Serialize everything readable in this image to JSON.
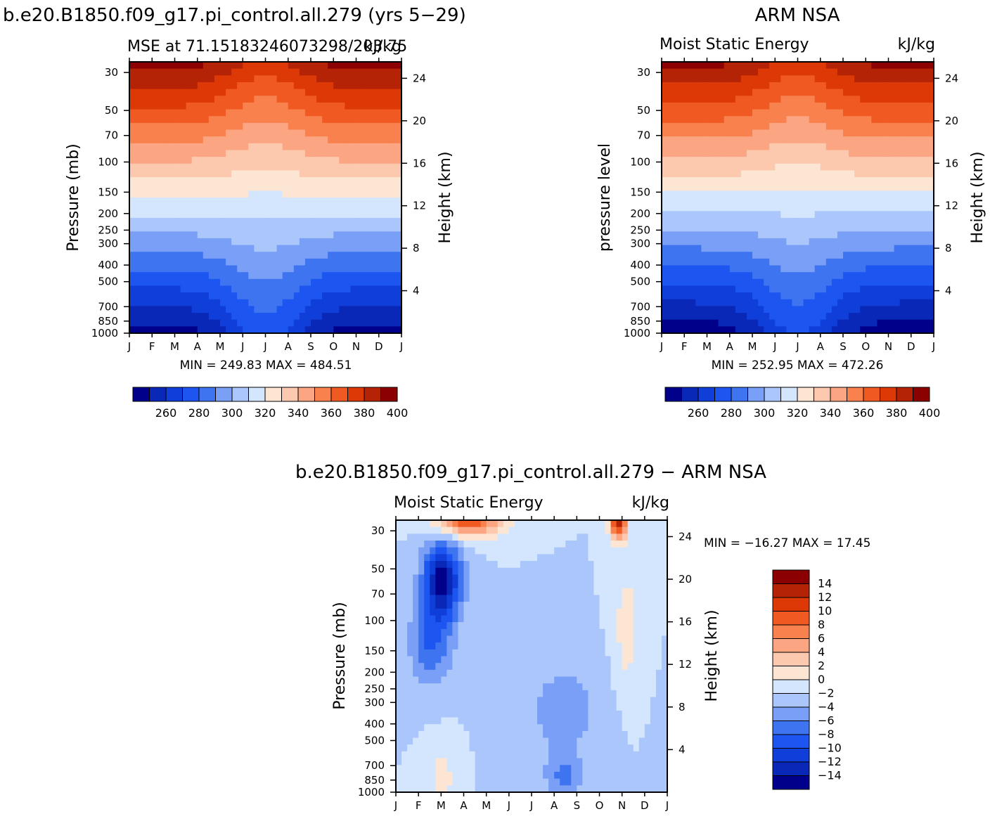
{
  "months": [
    "J",
    "F",
    "M",
    "A",
    "M",
    "J",
    "J",
    "A",
    "S",
    "O",
    "N",
    "D",
    "J"
  ],
  "pressure_ticks": [
    "30",
    "50",
    "70",
    "100",
    "150",
    "200",
    "250",
    "300",
    "400",
    "500",
    "700",
    "850",
    "1000"
  ],
  "pressure_values": [
    30,
    50,
    70,
    100,
    150,
    200,
    250,
    300,
    400,
    500,
    700,
    850,
    1000
  ],
  "height_ticks": [
    "24",
    "20",
    "16",
    "12",
    "8",
    "4"
  ],
  "height_values": [
    24,
    20,
    16,
    12,
    8,
    4
  ],
  "colors": {
    "mse_scale": [
      "#00008b",
      "#0a28b8",
      "#0f3ed8",
      "#1d55f0",
      "#3f74f0",
      "#7a9ff6",
      "#aac6fb",
      "#d4e6fd",
      "#fde5d4",
      "#fcc8ae",
      "#fba582",
      "#f8814e",
      "#f05a22",
      "#dd3906",
      "#b52306",
      "#8b0000"
    ],
    "diff_scale": [
      "#00008b",
      "#0a28b8",
      "#0f3ed8",
      "#1d55f0",
      "#3f74f0",
      "#7a9ff6",
      "#aac6fb",
      "#d4e6fd",
      "#fde5d4",
      "#fcc8ae",
      "#fba582",
      "#f8814e",
      "#f05a22",
      "#dd3906",
      "#b52306",
      "#8b0000"
    ]
  },
  "chart_data": [
    {
      "type": "heatmap",
      "id": "model",
      "main_title": "b.e20.B1850.f09_g17.pi_control.all.279 (yrs 5−29)",
      "subtitle_left": "MSE at 71.15183246073298/203.75",
      "subtitle_right": "kJ/kg",
      "ylabel": "Pressure (mb)",
      "y2label": "Height (km)",
      "stats": "MIN =  249.83 MAX =  484.51",
      "min": 249.83,
      "max": 484.51,
      "colorbar_labels": [
        "260",
        "280",
        "300",
        "320",
        "340",
        "360",
        "380",
        "400"
      ],
      "levels": [
        260,
        270,
        280,
        290,
        300,
        310,
        320,
        330,
        340,
        350,
        360,
        370,
        380,
        390,
        400
      ],
      "seasonal_amplitude": 1.0
    },
    {
      "type": "heatmap",
      "id": "obs",
      "main_title": "ARM NSA",
      "subtitle_left": "Moist Static Energy",
      "subtitle_right": "kJ/kg",
      "ylabel": "pressure level",
      "y2label": "Height (km)",
      "stats": "MIN =  252.95 MAX =  472.26",
      "min": 252.95,
      "max": 472.26,
      "colorbar_labels": [
        "260",
        "280",
        "300",
        "320",
        "340",
        "360",
        "380",
        "400"
      ],
      "levels": [
        260,
        270,
        280,
        290,
        300,
        310,
        320,
        330,
        340,
        350,
        360,
        370,
        380,
        390,
        400
      ],
      "seasonal_amplitude": 1.0
    },
    {
      "type": "heatmap",
      "id": "diff",
      "main_title": "b.e20.B1850.f09_g17.pi_control.all.279 − ARM NSA",
      "subtitle_left": "Moist Static Energy",
      "subtitle_right": "kJ/kg",
      "ylabel": "Pressure (mb)",
      "y2label": "Height (km)",
      "stats": "MIN = −16.27 MAX =   17.45",
      "min": -16.27,
      "max": 17.45,
      "colorbar_labels": [
        "14",
        "12",
        "10",
        "8",
        "6",
        "4",
        "2",
        "0",
        "−2",
        "−4",
        "−6",
        "−8",
        "−10",
        "−12",
        "−14"
      ],
      "levels": [
        -14,
        -12,
        -10,
        -8,
        -6,
        -4,
        -2,
        0,
        2,
        4,
        6,
        8,
        10,
        12,
        14
      ]
    }
  ]
}
